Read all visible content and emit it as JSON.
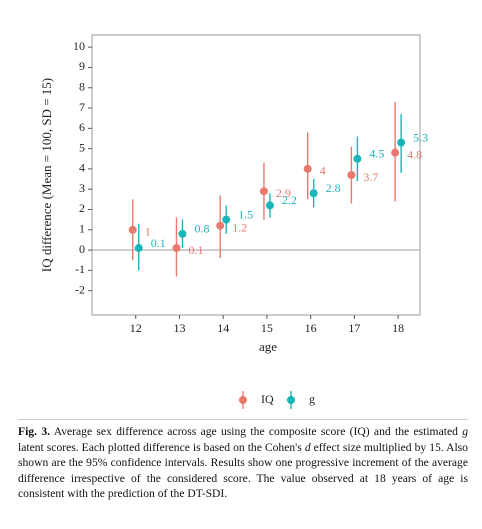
{
  "chart_data": {
    "type": "errorpoint",
    "y_label": "IQ difference (Mean = 100, SD = 15)",
    "x_label": "age",
    "x": [
      12,
      13,
      14,
      15,
      16,
      17,
      18
    ],
    "xlim": [
      11,
      18.5
    ],
    "xticks": [
      12,
      13,
      14,
      15,
      16,
      17,
      18
    ],
    "ylim": [
      -3.2,
      10.6
    ],
    "yticks": [
      -2,
      -1,
      0,
      1,
      2,
      3,
      4,
      5,
      6,
      7,
      8,
      9,
      10
    ],
    "hline": 0,
    "series": [
      {
        "name": "IQ",
        "color": "#e7796f",
        "values": [
          1,
          0.1,
          1.2,
          2.9,
          4,
          3.7,
          4.8
        ],
        "lower": [
          -0.5,
          -1.3,
          -0.4,
          1.5,
          2.5,
          2.3,
          2.4
        ],
        "upper": [
          2.5,
          1.6,
          2.7,
          4.3,
          5.8,
          5.1,
          7.3
        ]
      },
      {
        "name": "g",
        "color": "#1ab5b8",
        "values": [
          0.1,
          0.8,
          1.5,
          2.2,
          2.8,
          4.5,
          5.3
        ],
        "lower": [
          -1.0,
          0.1,
          0.8,
          1.6,
          2.1,
          3.4,
          3.8
        ],
        "upper": [
          1.3,
          1.5,
          2.2,
          2.8,
          3.5,
          5.6,
          6.7
        ]
      }
    ]
  },
  "caption": {
    "label": "Fig. 3.",
    "parts": [
      "Average sex difference across age using the composite score (IQ) and the estimated ",
      "g",
      " latent scores. Each plotted difference is based on the Cohen's ",
      "d",
      " effect size multiplied by 15. Also shown are the 95% confidence intervals. Results show one progressive increment of the average difference irrespective of the considered score. The value observed at 18 years of age is consistent with the prediction of the DT-SDI."
    ]
  }
}
